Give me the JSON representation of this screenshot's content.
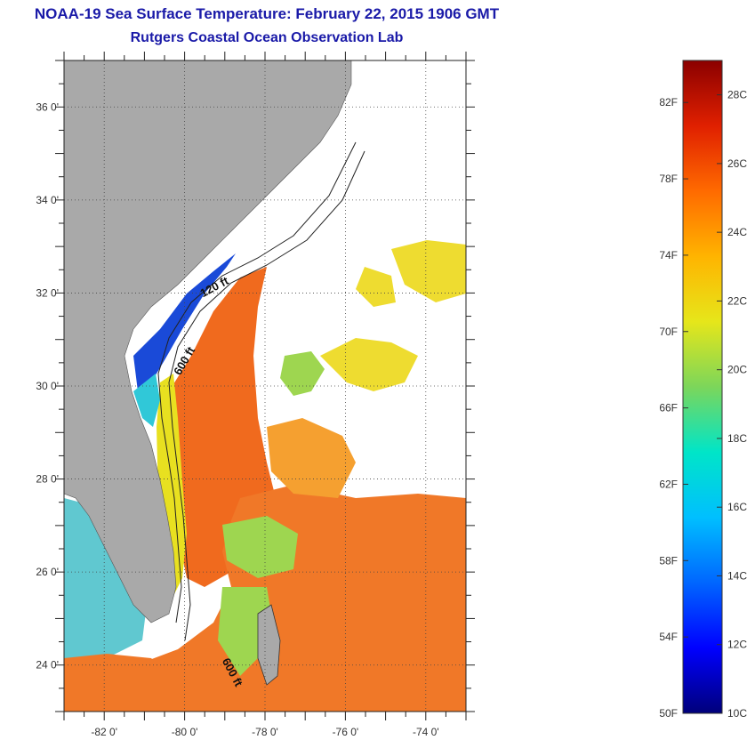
{
  "header": {
    "title": "NOAA-19 Sea Surface Temperature:  February 22, 2015 1906 GMT",
    "subtitle": "Rutgers Coastal Ocean Observation Lab"
  },
  "map": {
    "lat_range": [
      23,
      37
    ],
    "lon_range": [
      -83,
      -73
    ],
    "lat_ticks": [
      {
        "value": 24,
        "label": "24 0'"
      },
      {
        "value": 26,
        "label": "26 0'"
      },
      {
        "value": 28,
        "label": "28 0'"
      },
      {
        "value": 30,
        "label": "30 0'"
      },
      {
        "value": 32,
        "label": "32 0'"
      },
      {
        "value": 34,
        "label": "34 0'"
      },
      {
        "value": 36,
        "label": "36 0'"
      }
    ],
    "lon_ticks": [
      {
        "value": -82,
        "label": "-82 0'"
      },
      {
        "value": -80,
        "label": "-80 0'"
      },
      {
        "value": -78,
        "label": "-78 0'"
      },
      {
        "value": -76,
        "label": "-76 0'"
      },
      {
        "value": -74,
        "label": "-74 0'"
      }
    ],
    "contour_labels": [
      "120 ft",
      "600 ft",
      "600 ft"
    ],
    "colors": {
      "land": "#a9a9a9",
      "cloud": "#ffffff",
      "title": "#1a1aa8"
    }
  },
  "colorbar": {
    "min_c": 10,
    "max_c": 29,
    "fahrenheit_labels": [
      "82F",
      "78F",
      "74F",
      "70F",
      "66F",
      "62F",
      "58F",
      "54F",
      "50F"
    ],
    "celsius_labels": [
      "28C",
      "26C",
      "24C",
      "22C",
      "20C",
      "18C",
      "16C",
      "14C",
      "12C",
      "10C"
    ],
    "colors": [
      "#00007a",
      "#0000ff",
      "#0066ff",
      "#00bfff",
      "#00e5c8",
      "#7cd65a",
      "#e6e61a",
      "#ffb400",
      "#ff6a00",
      "#e02000",
      "#8b0000"
    ]
  }
}
